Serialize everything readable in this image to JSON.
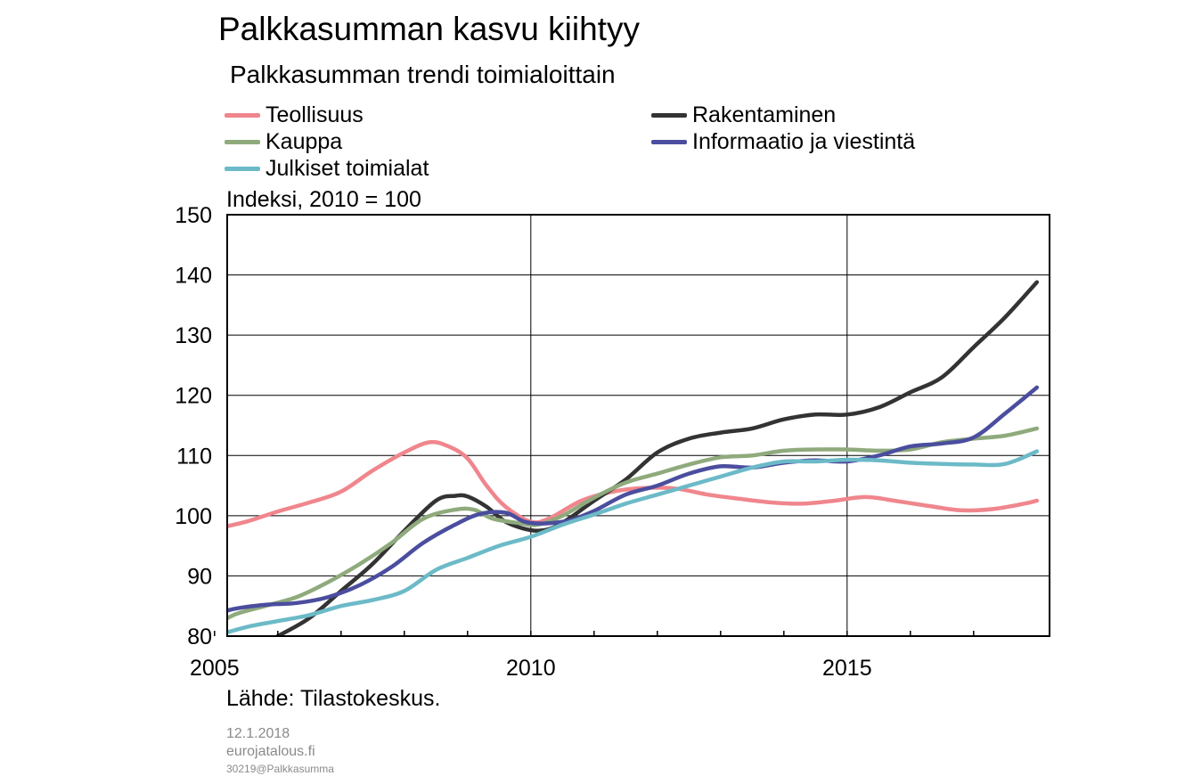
{
  "title": "Palkkasumman kasvu kiihtyy",
  "subtitle": "Palkkasumman trendi toimialoittain",
  "ylabel": "Indeksi, 2010 = 100",
  "source": "Lähde: Tilastokeskus.",
  "footer": {
    "date": "12.1.2018",
    "site": "eurojatalous.fi",
    "code": "30219@Palkkasumma"
  },
  "chart_data": {
    "type": "line",
    "xlim": [
      2005,
      2018
    ],
    "ylim": [
      80,
      150
    ],
    "yticks": [
      80,
      90,
      100,
      110,
      120,
      130,
      140,
      150
    ],
    "xtick_labels": [
      {
        "value": 2005,
        "label": "2005"
      },
      {
        "value": 2010,
        "label": "2010"
      },
      {
        "value": 2015,
        "label": "2015"
      }
    ],
    "x_minor_ticks": [
      2006,
      2007,
      2008,
      2009,
      2011,
      2012,
      2013,
      2014,
      2016,
      2017
    ],
    "grid": {
      "horizontal": true,
      "vertical": [
        2010,
        2015
      ]
    },
    "legend_placement": "top, two columns",
    "series": [
      {
        "name": "Teollisuus",
        "color": "#f0868d",
        "points": [
          [
            2005.0,
            97.8
          ],
          [
            2005.5,
            99.0
          ],
          [
            2006.0,
            100.7
          ],
          [
            2006.5,
            102.2
          ],
          [
            2007.0,
            104.0
          ],
          [
            2007.5,
            107.5
          ],
          [
            2008.0,
            110.5
          ],
          [
            2008.4,
            112.2
          ],
          [
            2008.7,
            111.5
          ],
          [
            2009.0,
            109.5
          ],
          [
            2009.3,
            105.0
          ],
          [
            2009.6,
            101.5
          ],
          [
            2010.0,
            99.0
          ],
          [
            2010.3,
            99.6
          ],
          [
            2010.8,
            102.5
          ],
          [
            2011.3,
            104.0
          ],
          [
            2011.8,
            104.6
          ],
          [
            2012.3,
            104.5
          ],
          [
            2012.8,
            103.5
          ],
          [
            2013.3,
            102.8
          ],
          [
            2013.8,
            102.2
          ],
          [
            2014.3,
            102.0
          ],
          [
            2014.8,
            102.5
          ],
          [
            2015.3,
            103.1
          ],
          [
            2015.8,
            102.4
          ],
          [
            2016.3,
            101.6
          ],
          [
            2016.8,
            100.9
          ],
          [
            2017.3,
            101.1
          ],
          [
            2017.8,
            102.0
          ],
          [
            2018.0,
            102.5
          ]
        ]
      },
      {
        "name": "Rakentaminen",
        "color": "#333333",
        "points": [
          [
            2006.0,
            80.0
          ],
          [
            2006.5,
            83.0
          ],
          [
            2007.0,
            87.5
          ],
          [
            2007.5,
            92.0
          ],
          [
            2008.0,
            97.5
          ],
          [
            2008.5,
            102.5
          ],
          [
            2008.8,
            103.3
          ],
          [
            2009.0,
            103.2
          ],
          [
            2009.3,
            101.5
          ],
          [
            2009.6,
            99.0
          ],
          [
            2010.0,
            97.6
          ],
          [
            2010.3,
            97.8
          ],
          [
            2010.6,
            99.5
          ],
          [
            2011.0,
            102.5
          ],
          [
            2011.5,
            106.0
          ],
          [
            2012.0,
            110.5
          ],
          [
            2012.5,
            112.8
          ],
          [
            2013.0,
            113.8
          ],
          [
            2013.5,
            114.5
          ],
          [
            2014.0,
            116.0
          ],
          [
            2014.5,
            116.8
          ],
          [
            2015.0,
            116.8
          ],
          [
            2015.5,
            118.0
          ],
          [
            2016.0,
            120.5
          ],
          [
            2016.5,
            123.0
          ],
          [
            2017.0,
            128.0
          ],
          [
            2017.5,
            133.0
          ],
          [
            2018.0,
            138.8
          ]
        ]
      },
      {
        "name": "Kauppa",
        "color": "#8faa7c",
        "points": [
          [
            2005.0,
            81.5
          ],
          [
            2005.3,
            83.5
          ],
          [
            2005.8,
            85.0
          ],
          [
            2006.3,
            86.5
          ],
          [
            2006.8,
            89.0
          ],
          [
            2007.3,
            92.0
          ],
          [
            2007.8,
            95.5
          ],
          [
            2008.3,
            99.5
          ],
          [
            2008.8,
            101.0
          ],
          [
            2009.1,
            101.0
          ],
          [
            2009.4,
            99.5
          ],
          [
            2009.8,
            98.8
          ],
          [
            2010.1,
            98.5
          ],
          [
            2010.5,
            100.0
          ],
          [
            2011.0,
            103.0
          ],
          [
            2011.5,
            105.5
          ],
          [
            2012.0,
            107.0
          ],
          [
            2012.5,
            108.5
          ],
          [
            2013.0,
            109.7
          ],
          [
            2013.5,
            110.0
          ],
          [
            2014.0,
            110.8
          ],
          [
            2014.5,
            111.0
          ],
          [
            2015.0,
            111.0
          ],
          [
            2015.5,
            110.8
          ],
          [
            2016.0,
            111.0
          ],
          [
            2016.5,
            112.2
          ],
          [
            2017.0,
            112.8
          ],
          [
            2017.5,
            113.3
          ],
          [
            2018.0,
            114.5
          ]
        ]
      },
      {
        "name": "Informaatio ja viestintä",
        "color": "#4b4d9e",
        "points": [
          [
            2005.0,
            83.5
          ],
          [
            2005.3,
            84.5
          ],
          [
            2005.8,
            85.2
          ],
          [
            2006.3,
            85.5
          ],
          [
            2006.8,
            86.5
          ],
          [
            2007.3,
            88.5
          ],
          [
            2007.8,
            91.5
          ],
          [
            2008.3,
            95.5
          ],
          [
            2008.8,
            98.5
          ],
          [
            2009.2,
            100.3
          ],
          [
            2009.6,
            100.5
          ],
          [
            2009.9,
            99.0
          ],
          [
            2010.2,
            98.7
          ],
          [
            2010.6,
            99.2
          ],
          [
            2011.0,
            100.8
          ],
          [
            2011.5,
            103.5
          ],
          [
            2012.0,
            105.0
          ],
          [
            2012.5,
            107.0
          ],
          [
            2013.0,
            108.2
          ],
          [
            2013.5,
            108.0
          ],
          [
            2014.0,
            108.8
          ],
          [
            2014.5,
            109.2
          ],
          [
            2015.0,
            109.0
          ],
          [
            2015.5,
            110.0
          ],
          [
            2016.0,
            111.5
          ],
          [
            2016.5,
            112.0
          ],
          [
            2017.0,
            113.0
          ],
          [
            2017.5,
            117.0
          ],
          [
            2018.0,
            121.3
          ]
        ]
      },
      {
        "name": "Julkiset toimialat",
        "color": "#6cbac8",
        "points": [
          [
            2005.0,
            80.0
          ],
          [
            2005.5,
            81.5
          ],
          [
            2006.0,
            82.5
          ],
          [
            2006.5,
            83.5
          ],
          [
            2007.0,
            85.0
          ],
          [
            2007.5,
            86.0
          ],
          [
            2008.0,
            87.5
          ],
          [
            2008.5,
            91.0
          ],
          [
            2009.0,
            93.0
          ],
          [
            2009.5,
            95.0
          ],
          [
            2010.0,
            96.5
          ],
          [
            2010.5,
            98.5
          ],
          [
            2011.0,
            100.2
          ],
          [
            2011.5,
            102.0
          ],
          [
            2012.0,
            103.5
          ],
          [
            2012.5,
            105.0
          ],
          [
            2013.0,
            106.5
          ],
          [
            2013.5,
            108.0
          ],
          [
            2014.0,
            109.0
          ],
          [
            2014.5,
            109.0
          ],
          [
            2015.0,
            109.3
          ],
          [
            2015.5,
            109.2
          ],
          [
            2016.0,
            108.8
          ],
          [
            2016.5,
            108.6
          ],
          [
            2017.0,
            108.5
          ],
          [
            2017.5,
            108.6
          ],
          [
            2018.0,
            110.7
          ]
        ]
      }
    ]
  }
}
